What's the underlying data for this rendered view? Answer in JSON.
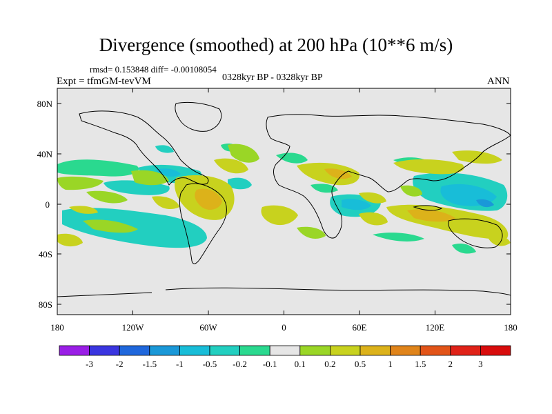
{
  "title": "Divergence (smoothed) at 200 hPa (10**6 m/s)",
  "stats": "rmsd= 0.153848 diff= -0.00108054",
  "experiment": "Expt = tfmGM-tevVM",
  "period": "0328kyr BP - 0328kyr BP",
  "season": "ANN",
  "lat_ticks": [
    "80N",
    "40N",
    "0",
    "40S",
    "80S"
  ],
  "lon_ticks": [
    "180",
    "120W",
    "60W",
    "0",
    "60E",
    "120E",
    "180"
  ],
  "colorbar_labels": [
    "-3",
    "-2",
    "-1.5",
    "-1",
    "-0.5",
    "-0.2",
    "-0.1",
    "0.1",
    "0.2",
    "0.5",
    "1",
    "1.5",
    "2",
    "3"
  ],
  "colorbar_colors": [
    "#9a1ee6",
    "#3a35e0",
    "#1f67dc",
    "#1a98d8",
    "#18bdd8",
    "#22cfc0",
    "#2ad98f",
    "#e6e6e6",
    "#9ad626",
    "#c8d21e",
    "#dcb21a",
    "#e0841a",
    "#e25418",
    "#e02218",
    "#d80c0c"
  ],
  "colors": {
    "ocean_background": "#e6e6e6",
    "positive_light": "#9ad626",
    "positive": "#c8d21e",
    "positive_strong": "#dcb21a",
    "negative_light": "#2ad98f",
    "negative": "#22cfc0",
    "negative_strong": "#18bdd8"
  }
}
